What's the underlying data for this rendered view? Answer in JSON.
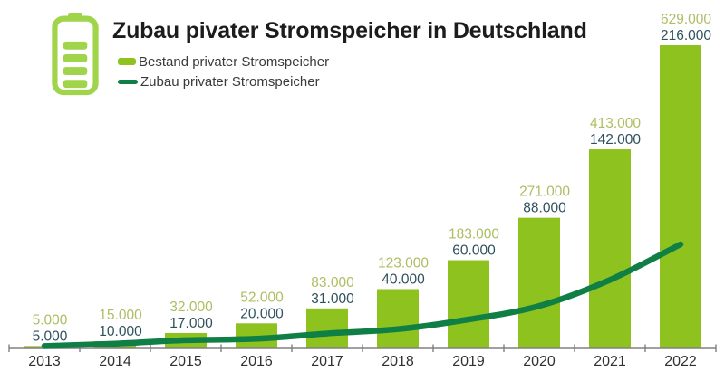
{
  "header": {
    "title": "Zubau pivater Stromspeicher in Deutschland"
  },
  "legend": {
    "items": [
      {
        "label": "Bestand privater Stromspeicher",
        "type": "bar-swatch"
      },
      {
        "label": "Zubau privater Stromspeicher",
        "type": "line-swatch"
      }
    ]
  },
  "colors": {
    "bar": "#8dc21f",
    "line": "#0f7f45",
    "icon": "#a0d44a",
    "bestand_label": "#acbe62",
    "zubau_label": "#2f515d",
    "axis": "#808080",
    "year_label": "#303030",
    "title": "#1c1c1c"
  },
  "chart_data": {
    "type": "bar+line",
    "title": "Zubau pivater Stromspeicher in Deutschland",
    "categories": [
      "2013",
      "2014",
      "2015",
      "2016",
      "2017",
      "2018",
      "2019",
      "2020",
      "2021",
      "2022"
    ],
    "series": [
      {
        "name": "Bestand privater Stromspeicher",
        "type": "bar",
        "values": [
          5000,
          15000,
          32000,
          52000,
          83000,
          123000,
          183000,
          271000,
          413000,
          629000
        ],
        "labels": [
          "5.000",
          "15.000",
          "32.000",
          "52.000",
          "83.000",
          "123.000",
          "183.000",
          "271.000",
          "413.000",
          "629.000"
        ]
      },
      {
        "name": "Zubau privater Stromspeicher",
        "type": "line",
        "values": [
          5000,
          10000,
          17000,
          20000,
          31000,
          40000,
          60000,
          88000,
          142000,
          216000
        ],
        "labels": [
          "5.000",
          "10.000",
          "17.000",
          "20.000",
          "31.000",
          "40.000",
          "60.000",
          "88.000",
          "142.000",
          "216.000"
        ]
      }
    ],
    "xlabel": "",
    "ylabel": "",
    "ylim": [
      0,
      629000
    ],
    "grid": false,
    "y_axis_visible": false,
    "legend_position": "top-left"
  }
}
